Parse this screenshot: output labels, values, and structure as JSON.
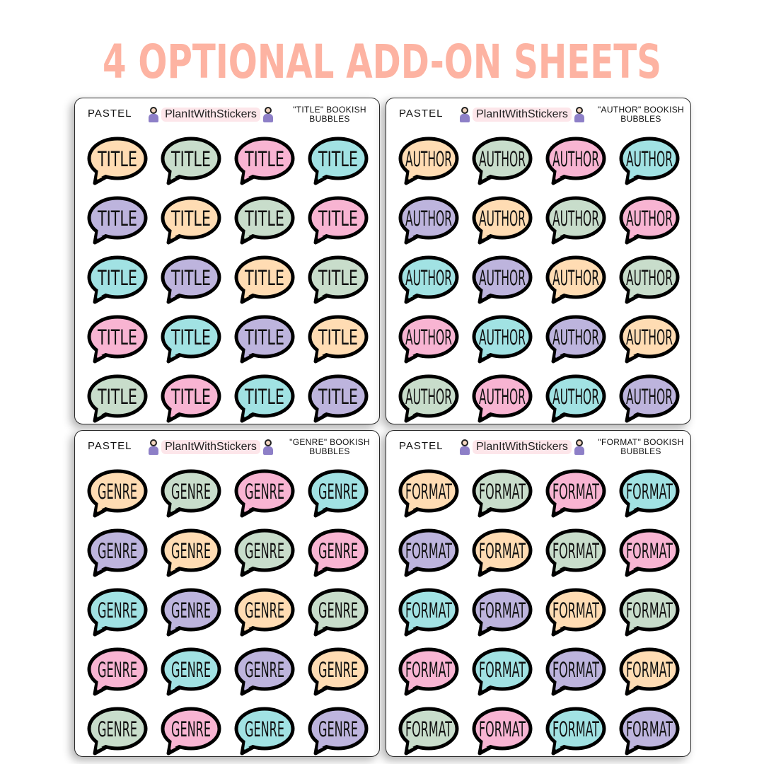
{
  "headline": "4 OPTIONAL ADD-ON SHEETS",
  "colors": {
    "headline": "#fdb3a2",
    "palette": [
      "#ffdcb3",
      "#c8ddcb",
      "#f8b4d2",
      "#a1e2e3",
      "#bdb4dd"
    ],
    "outline": "#000000"
  },
  "sheets": [
    {
      "label": "PASTEL",
      "brand": "PlanItWithStickers",
      "title_line1": "\"TITLE\" BOOKISH",
      "title_line2": "BUBBLES",
      "word": "TITLE"
    },
    {
      "label": "PASTEL",
      "brand": "PlanItWithStickers",
      "title_line1": "\"AUTHOR\" BOOKISH",
      "title_line2": "BUBBLES",
      "word": "AUTHOR"
    },
    {
      "label": "PASTEL",
      "brand": "PlanItWithStickers",
      "title_line1": "\"GENRE\" BOOKISH",
      "title_line2": "BUBBLES",
      "word": "GENRE"
    },
    {
      "label": "PASTEL",
      "brand": "PlanItWithStickers",
      "title_line1": "\"FORMAT\" BOOKISH",
      "title_line2": "BUBBLES",
      "word": "FORMAT"
    }
  ],
  "grid": {
    "columns": 4,
    "rows": 5
  }
}
